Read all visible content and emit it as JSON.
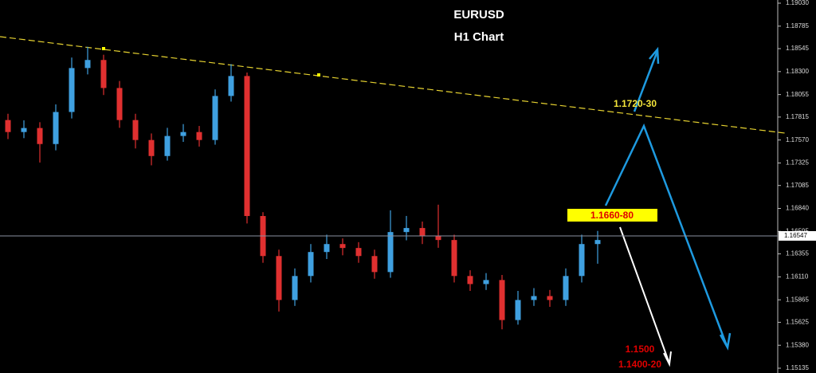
{
  "chart_data": {
    "type": "candlestick",
    "title": "EURUSD",
    "subtitle": "H1 Chart",
    "up_color": "#3fa0e0",
    "down_color": "#e03030",
    "open": [
      1.17783,
      1.17655,
      1.17698,
      1.17527,
      1.17869,
      1.18338,
      1.18424,
      1.18125,
      1.17783,
      1.1757,
      1.17399,
      1.17613,
      1.17655,
      1.1757,
      1.1804,
      1.18253,
      1.16759,
      1.16332,
      1.15863,
      1.16119,
      1.16375,
      1.1646,
      1.16418,
      1.16332,
      1.16161,
      1.16588,
      1.16631,
      1.16546,
      1.16503,
      1.16119,
      1.16033,
      1.16076,
      1.15649,
      1.15863,
      1.15905,
      1.15863,
      1.16119,
      1.1646
    ],
    "high": [
      1.1785,
      1.1778,
      1.1776,
      1.1795,
      1.1845,
      1.18565,
      1.1848,
      1.182,
      1.1785,
      1.1764,
      1.177,
      1.1774,
      1.1772,
      1.1811,
      1.1838,
      1.1829,
      1.168,
      1.164,
      1.162,
      1.1646,
      1.1656,
      1.1652,
      1.1648,
      1.164,
      1.1682,
      1.1676,
      1.167,
      1.1688,
      1.1656,
      1.1618,
      1.1615,
      1.1613,
      1.1596,
      1.1599,
      1.1597,
      1.162,
      1.1656,
      1.166
    ],
    "low": [
      1.1758,
      1.1759,
      1.1733,
      1.1746,
      1.178,
      1.1827,
      1.1805,
      1.177,
      1.1748,
      1.173,
      1.1735,
      1.1755,
      1.175,
      1.1752,
      1.1798,
      1.1668,
      1.1626,
      1.1574,
      1.158,
      1.1605,
      1.163,
      1.1634,
      1.1626,
      1.1609,
      1.161,
      1.165,
      1.1646,
      1.1642,
      1.1605,
      1.1596,
      1.1597,
      1.1555,
      1.156,
      1.158,
      1.1579,
      1.158,
      1.1605,
      1.1625
    ],
    "close": [
      1.17655,
      1.17698,
      1.17527,
      1.17869,
      1.18338,
      1.18424,
      1.18125,
      1.17783,
      1.1757,
      1.17399,
      1.17613,
      1.17655,
      1.1757,
      1.1804,
      1.18253,
      1.16759,
      1.16332,
      1.15863,
      1.16119,
      1.16375,
      1.1646,
      1.16418,
      1.16332,
      1.16161,
      1.16588,
      1.16631,
      1.16546,
      1.16503,
      1.16119,
      1.16033,
      1.16076,
      1.15649,
      1.15863,
      1.15905,
      1.15863,
      1.16119,
      1.1646,
      1.16503
    ],
    "ylim": [
      1.15084,
      1.19064
    ],
    "yticks": [
      {
        "value": 1.1903,
        "label": "1.19030"
      },
      1.18785,
      1.18545,
      {
        "value": 1.183,
        "label": "1.18300"
      },
      1.18055,
      1.17815,
      {
        "value": 1.1757,
        "label": "1.17570"
      },
      1.17325,
      1.17085,
      {
        "value": 1.1684,
        "label": "1.16840"
      },
      1.16595,
      1.16355,
      {
        "value": 1.1611,
        "label": "1.16110"
      },
      1.15865,
      1.15625,
      {
        "value": 1.1538,
        "label": "1.15380"
      },
      1.15135
    ],
    "last_price": {
      "value": 1.16547,
      "label": "1.16547"
    },
    "annotations": [
      {
        "text": "1.1720-30"
      },
      {
        "text": "1.1660-80"
      },
      {
        "text": "1.1500"
      },
      {
        "text": "1.1400-20"
      }
    ]
  }
}
